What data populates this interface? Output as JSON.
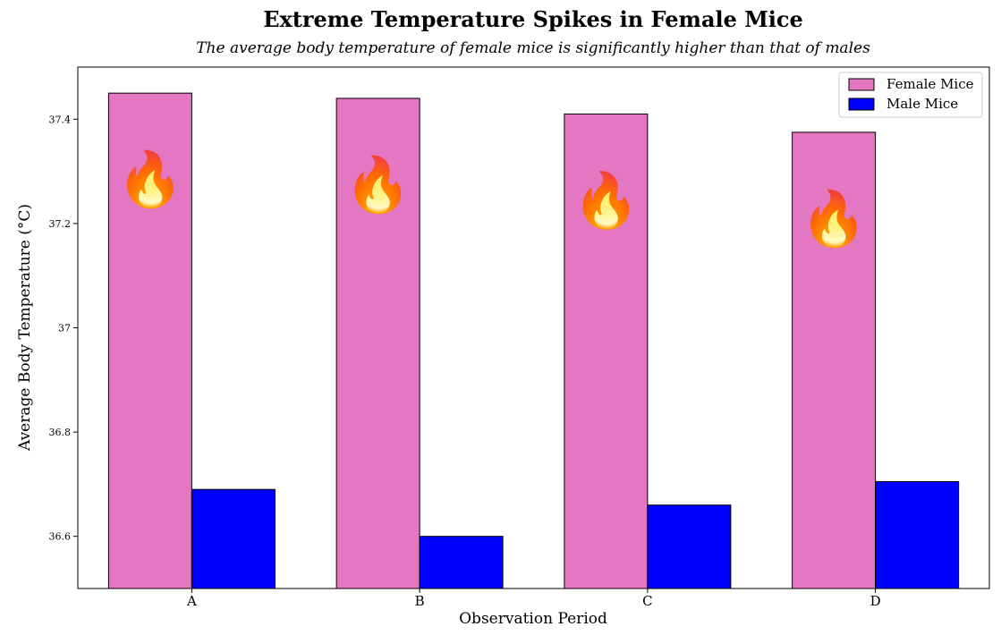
{
  "chart_data": {
    "type": "bar",
    "title": "Extreme Temperature Spikes in Female Mice",
    "subtitle": "The average body temperature of female mice is significantly higher than that of males",
    "xlabel": "Observation Period",
    "ylabel": "Average Body Temperature (°C)",
    "categories": [
      "A",
      "B",
      "C",
      "D"
    ],
    "ylim": [
      36.5,
      37.5
    ],
    "yticks": [
      36.6,
      36.8,
      37.0,
      37.2,
      37.4
    ],
    "series": [
      {
        "name": "Female Mice",
        "color": "#e377c2",
        "values": [
          37.45,
          37.44,
          37.41,
          37.375
        ]
      },
      {
        "name": "Male Mice",
        "color": "#0000ff",
        "values": [
          36.69,
          36.6,
          36.66,
          36.705
        ]
      }
    ],
    "annotations": {
      "icon": "fire-icon",
      "glyph": "🔥",
      "on_series": "Female Mice"
    },
    "legend": {
      "position": "top-right"
    },
    "grid": false
  }
}
